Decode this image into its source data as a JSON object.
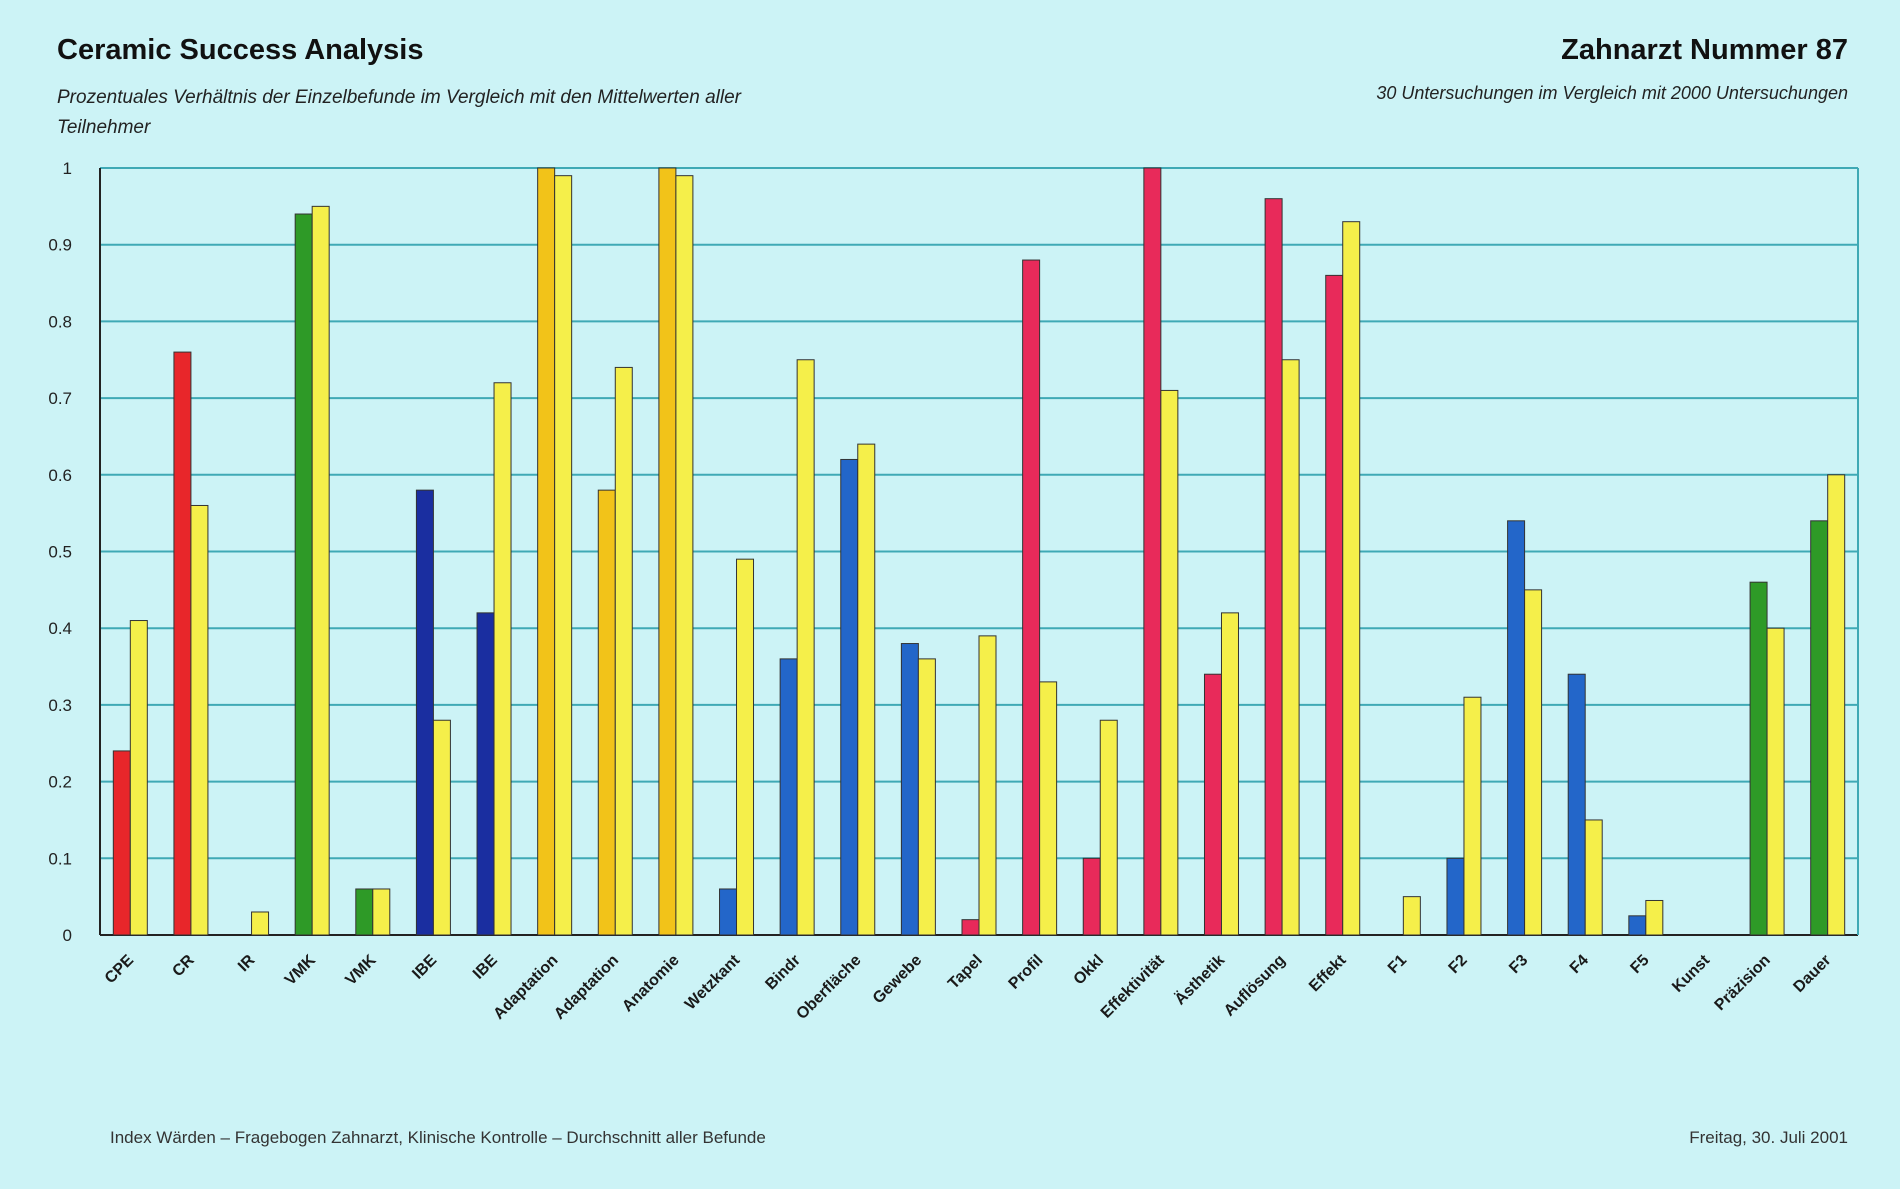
{
  "header": {
    "title": "Ceramic Success Analysis",
    "subtitle": "Prozentuales Verhältnis der Einzelbefunde im Vergleich mit den Mittelwerten aller Teilnehmer",
    "title_right": "Zahnarzt Nummer 87",
    "subtitle_right": "30 Untersuchungen im Vergleich mit 2000 Untersuchungen"
  },
  "footer": {
    "left": "Index Wärden – Fragebogen Zahnarzt, Klinische Kontrolle – Durchschnitt aller Befunde",
    "right": "Freitag, 30. Juli 2001"
  },
  "chart_data": {
    "type": "bar",
    "ylim": [
      0,
      1
    ],
    "yticks": [
      "0",
      "0.1",
      "0.2",
      "0.3",
      "0.4",
      "0.5",
      "0.6",
      "0.7",
      "0.8",
      "0.9",
      "1"
    ],
    "grid": true,
    "categories": [
      "CPE",
      "CR",
      "IR",
      "VMK",
      "VMK",
      "IBE",
      "IBE",
      "Adaptation",
      "Adaptation",
      "Anatomie",
      "Wetzkant",
      "Bindr",
      "Oberfläche",
      "Gewebe",
      "Tapel",
      "Profil",
      "Okkl",
      "Effektivität",
      "Ästhetik",
      "Auflösung",
      "Effekt",
      "F1",
      "F2",
      "F3",
      "F4",
      "F5",
      "Kunst",
      "Präzision",
      "Dauer"
    ],
    "series": [
      {
        "values": [
          0.24,
          0.76,
          0.0,
          0.94,
          0.06,
          0.58,
          0.42,
          1.0,
          0.58,
          1.0,
          0.06,
          0.36,
          0.62,
          0.38,
          0.02,
          0.88,
          0.1,
          1.0,
          0.34,
          0.96,
          0.86,
          0.0,
          0.1,
          0.54,
          0.34,
          0.025,
          0.0,
          0.46,
          0.54
        ],
        "colors": [
          "#e8262a",
          "#e8262a",
          "#e8262a",
          "#2e9a27",
          "#2e9a27",
          "#1a2ea0",
          "#1a2ea0",
          "#f2c319",
          "#f2c319",
          "#f2c319",
          "#2366c9",
          "#2366c9",
          "#2366c9",
          "#2366c9",
          "#e82a5a",
          "#e82a5a",
          "#e82a5a",
          "#e82a5a",
          "#e82a5a",
          "#e82a5a",
          "#e82a5a",
          "#2366c9",
          "#2366c9",
          "#2366c9",
          "#2366c9",
          "#2366c9",
          "#2e9a27",
          "#2e9a27",
          "#2e9a27"
        ]
      },
      {
        "values": [
          0.41,
          0.56,
          0.03,
          0.95,
          0.06,
          0.28,
          0.72,
          0.99,
          0.74,
          0.99,
          0.49,
          0.75,
          0.64,
          0.36,
          0.39,
          0.33,
          0.28,
          0.71,
          0.42,
          0.75,
          0.93,
          0.05,
          0.31,
          0.45,
          0.15,
          0.045,
          0.0,
          0.4,
          0.6
        ],
        "color": "#f5ef4a"
      }
    ]
  }
}
